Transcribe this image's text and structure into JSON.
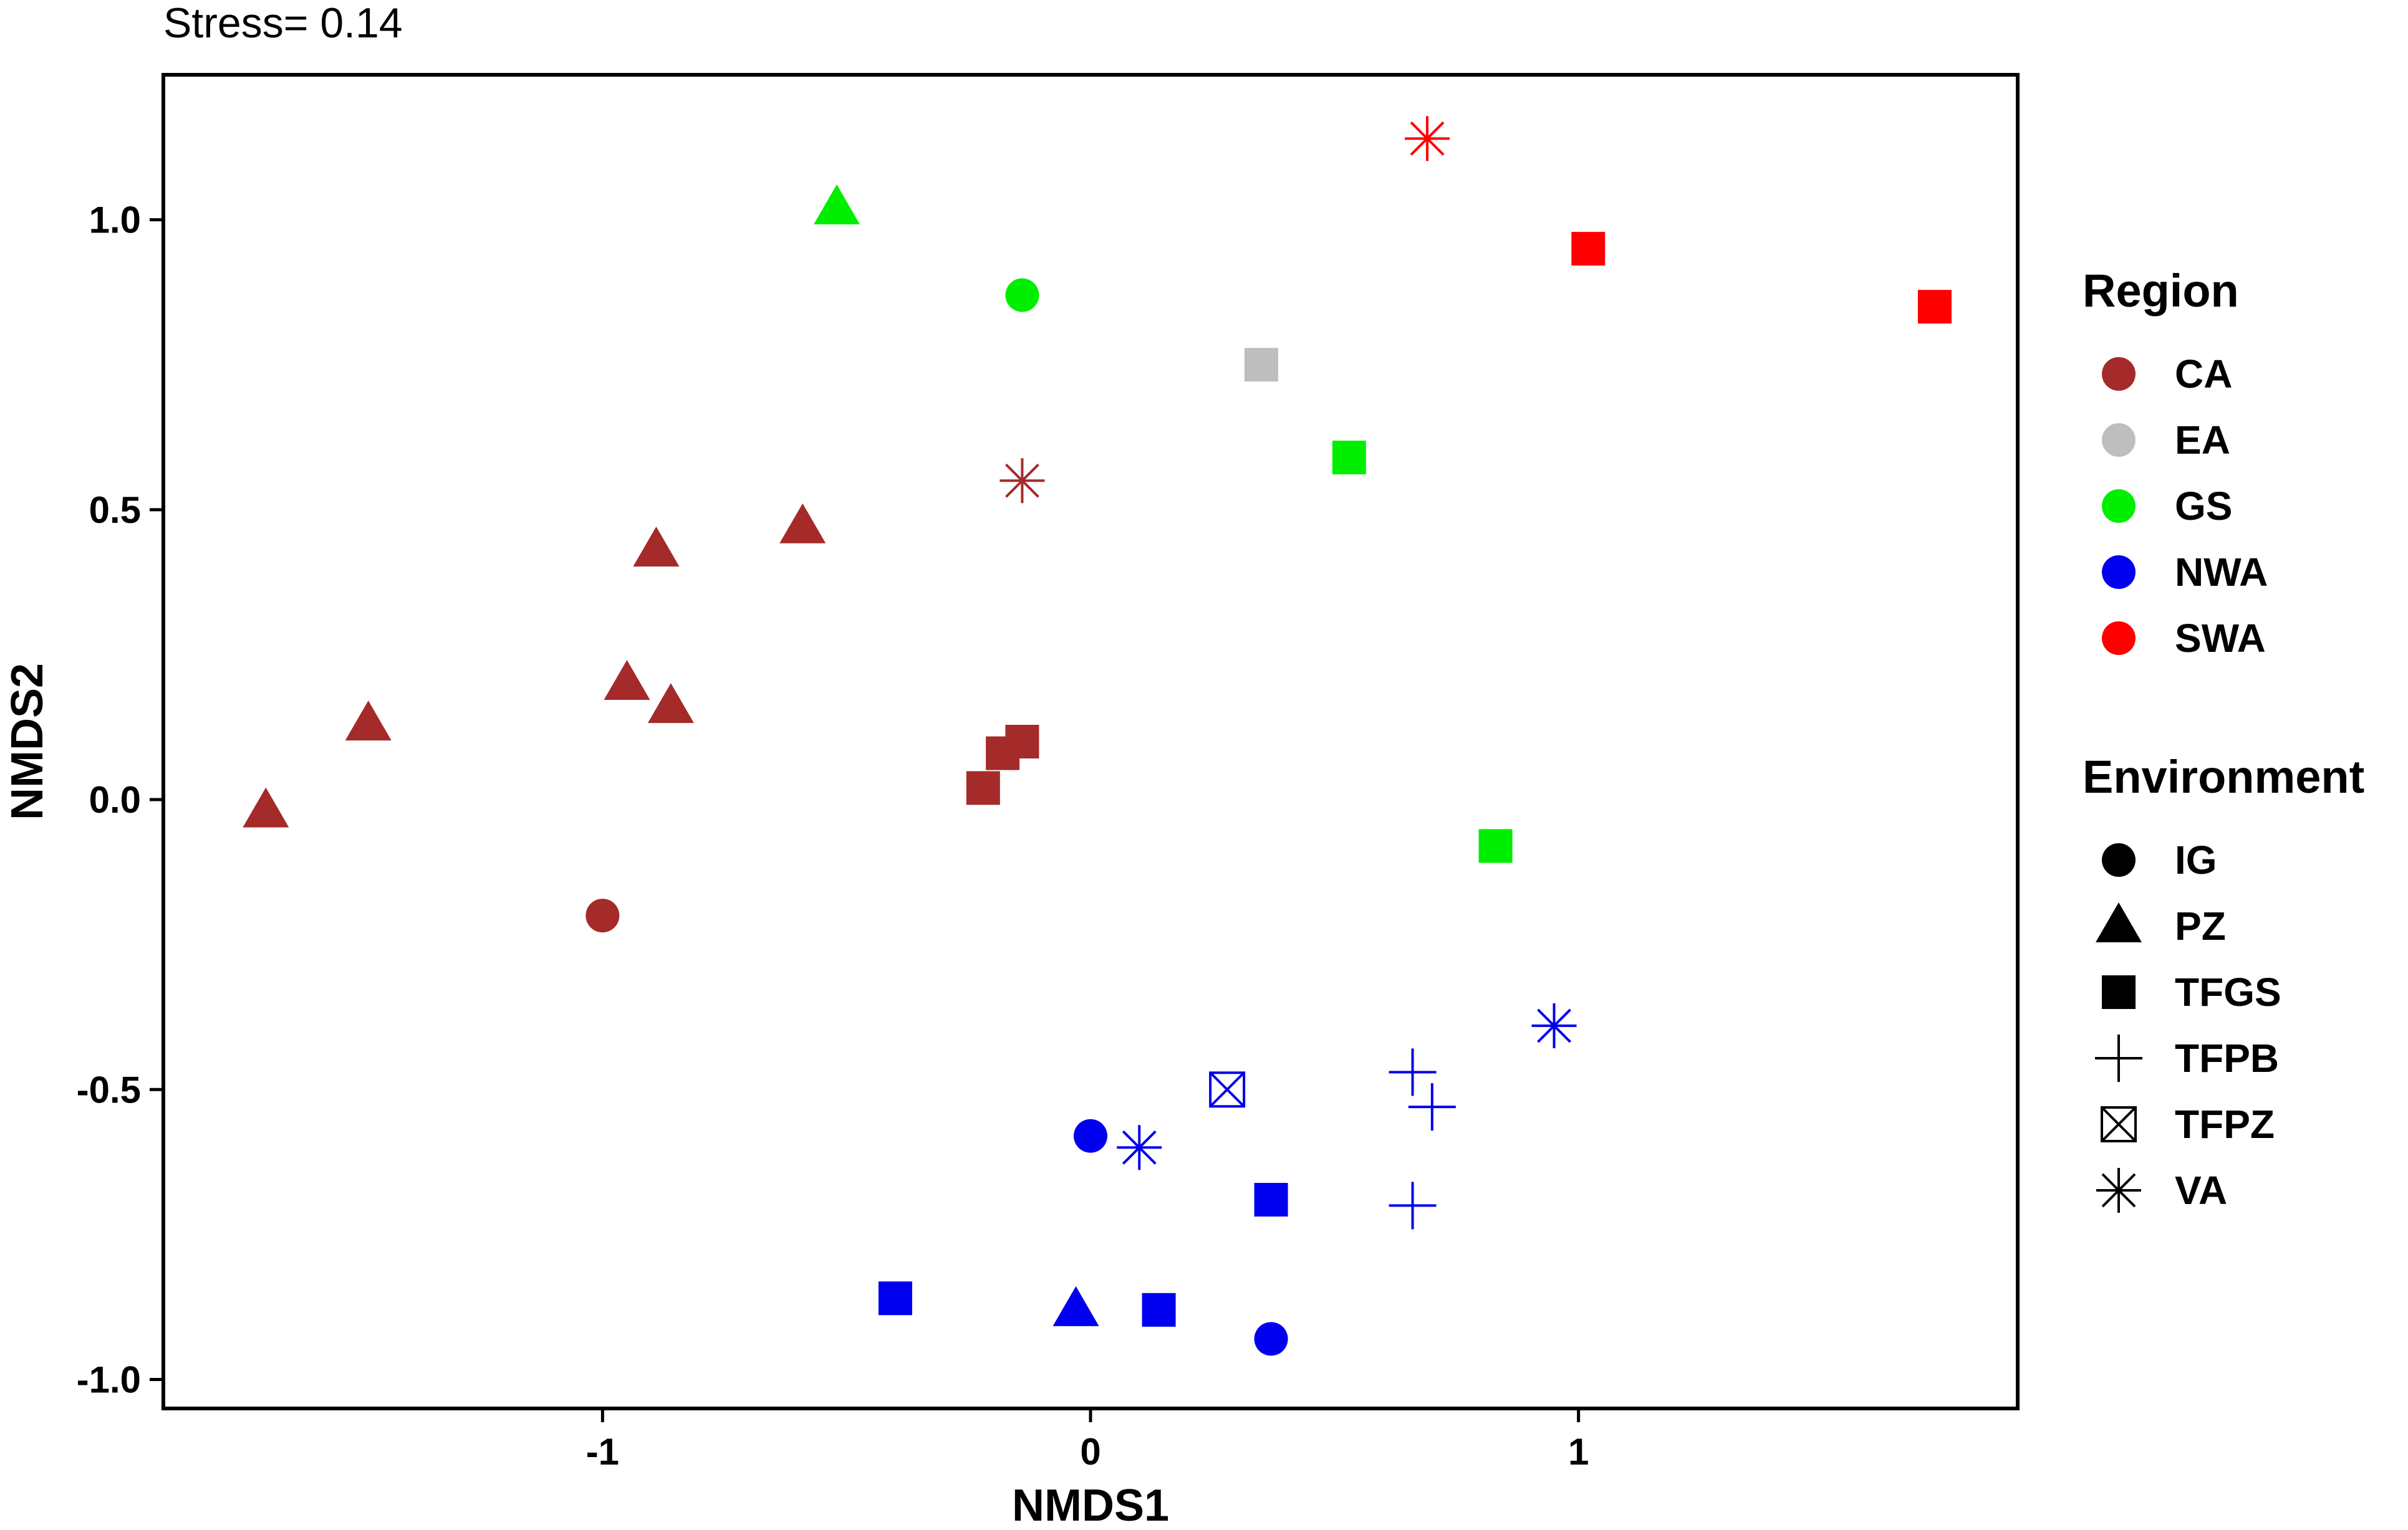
{
  "chart_data": {
    "type": "scatter",
    "annotation": "Stress= 0.14",
    "xlabel": "NMDS1",
    "ylabel": "NMDS2",
    "xlim": [
      -1.9,
      1.9
    ],
    "ylim": [
      -1.05,
      1.25
    ],
    "x_ticks": [
      -1,
      0,
      1
    ],
    "x_tick_labels": [
      "-1",
      "0",
      "1"
    ],
    "y_ticks": [
      -1.0,
      -0.5,
      0.0,
      0.5,
      1.0
    ],
    "y_tick_labels": [
      "-1.0",
      "-0.5",
      "0.0",
      "0.5",
      "1.0"
    ],
    "grid": false,
    "legend_placement": "right",
    "region_legend": {
      "title": "Region",
      "items": [
        {
          "label": "CA",
          "color": "#a52a2a"
        },
        {
          "label": "EA",
          "color": "#bebebe"
        },
        {
          "label": "GS",
          "color": "#00ee00"
        },
        {
          "label": "NWA",
          "color": "#0000ee"
        },
        {
          "label": "SWA",
          "color": "#ff0000"
        }
      ]
    },
    "environment_legend": {
      "title": "Environment",
      "items": [
        {
          "label": "IG",
          "shape": "circle"
        },
        {
          "label": "PZ",
          "shape": "triangle"
        },
        {
          "label": "TFGS",
          "shape": "square"
        },
        {
          "label": "TFPB",
          "shape": "plus"
        },
        {
          "label": "TFPZ",
          "shape": "boxx"
        },
        {
          "label": "VA",
          "shape": "asterisk"
        }
      ]
    },
    "points": [
      {
        "x": -1.69,
        "y": -0.02,
        "region": "CA",
        "env": "PZ"
      },
      {
        "x": -1.48,
        "y": 0.13,
        "region": "CA",
        "env": "PZ"
      },
      {
        "x": -0.95,
        "y": 0.2,
        "region": "CA",
        "env": "PZ"
      },
      {
        "x": -0.89,
        "y": 0.43,
        "region": "CA",
        "env": "PZ"
      },
      {
        "x": -0.86,
        "y": 0.16,
        "region": "CA",
        "env": "PZ"
      },
      {
        "x": -0.59,
        "y": 0.47,
        "region": "CA",
        "env": "PZ"
      },
      {
        "x": -1.0,
        "y": -0.2,
        "region": "CA",
        "env": "IG"
      },
      {
        "x": -0.22,
        "y": 0.02,
        "region": "CA",
        "env": "TFGS"
      },
      {
        "x": -0.18,
        "y": 0.08,
        "region": "CA",
        "env": "TFGS"
      },
      {
        "x": -0.14,
        "y": 0.1,
        "region": "CA",
        "env": "TFGS"
      },
      {
        "x": -0.14,
        "y": 0.55,
        "region": "CA",
        "env": "VA"
      },
      {
        "x": 0.35,
        "y": 0.75,
        "region": "EA",
        "env": "TFGS"
      },
      {
        "x": -0.52,
        "y": 1.02,
        "region": "GS",
        "env": "PZ"
      },
      {
        "x": -0.14,
        "y": 0.87,
        "region": "GS",
        "env": "IG"
      },
      {
        "x": 0.53,
        "y": 0.59,
        "region": "GS",
        "env": "TFGS"
      },
      {
        "x": 0.83,
        "y": -0.08,
        "region": "GS",
        "env": "TFGS"
      },
      {
        "x": 0.69,
        "y": 1.14,
        "region": "SWA",
        "env": "VA"
      },
      {
        "x": 1.02,
        "y": 0.95,
        "region": "SWA",
        "env": "TFGS"
      },
      {
        "x": 1.73,
        "y": 0.85,
        "region": "SWA",
        "env": "TFGS"
      },
      {
        "x": 0.95,
        "y": -0.39,
        "region": "NWA",
        "env": "VA"
      },
      {
        "x": 0.1,
        "y": -0.6,
        "region": "NWA",
        "env": "VA"
      },
      {
        "x": 0.28,
        "y": -0.5,
        "region": "NWA",
        "env": "TFPZ"
      },
      {
        "x": 0.66,
        "y": -0.47,
        "region": "NWA",
        "env": "TFPB"
      },
      {
        "x": 0.7,
        "y": -0.53,
        "region": "NWA",
        "env": "TFPB"
      },
      {
        "x": 0.66,
        "y": -0.7,
        "region": "NWA",
        "env": "TFPB"
      },
      {
        "x": 0.0,
        "y": -0.58,
        "region": "NWA",
        "env": "IG"
      },
      {
        "x": 0.37,
        "y": -0.69,
        "region": "NWA",
        "env": "TFGS"
      },
      {
        "x": 0.37,
        "y": -0.93,
        "region": "NWA",
        "env": "IG"
      },
      {
        "x": -0.4,
        "y": -0.86,
        "region": "NWA",
        "env": "TFGS"
      },
      {
        "x": 0.14,
        "y": -0.88,
        "region": "NWA",
        "env": "TFGS"
      },
      {
        "x": -0.03,
        "y": -0.88,
        "region": "NWA",
        "env": "PZ"
      }
    ]
  }
}
